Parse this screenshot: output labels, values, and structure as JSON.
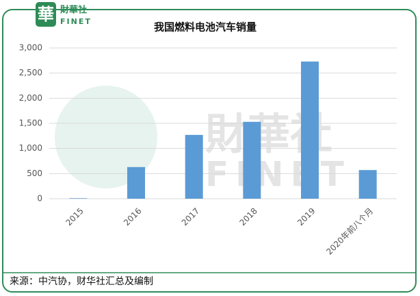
{
  "logo": {
    "mark": "華",
    "name": "財華社",
    "latin": "FINET"
  },
  "watermark": {
    "name": "財華社",
    "latin": "FINET"
  },
  "chart_data": {
    "type": "bar",
    "title": "我国燃料电池汽车销量",
    "categories": [
      "2015",
      "2016",
      "2017",
      "2018",
      "2019",
      "2020年前八个月"
    ],
    "values": [
      10,
      630,
      1270,
      1530,
      2730,
      570
    ],
    "color": "#5b9bd5",
    "ylim": [
      0,
      3000
    ],
    "yticks": [
      0,
      500,
      {
        "value": 1000,
        "label": "1,000"
      },
      {
        "value": 1500,
        "label": "1,500"
      },
      {
        "value": 2000,
        "label": "2,000"
      },
      {
        "value": 2500,
        "label": "2,500"
      },
      {
        "value": 3000,
        "label": "3,000"
      }
    ],
    "grid": true
  },
  "footer": "来源：中汽协，财华社汇总及编制"
}
